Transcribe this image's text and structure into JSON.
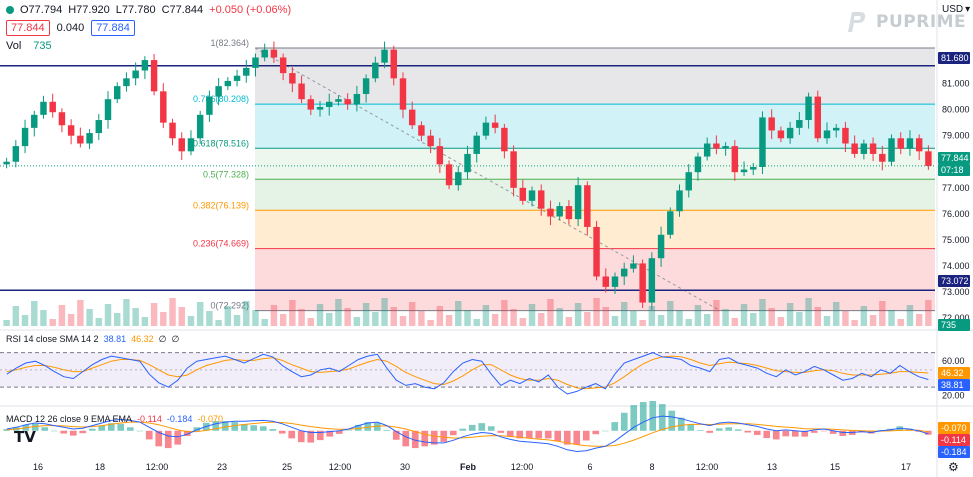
{
  "header": {
    "open_label": "O77.794",
    "high_label": "H77.920",
    "low_label": "L77.780",
    "close_label": "C77.844",
    "change_label": "+0.050 (+0.06%)"
  },
  "quote": {
    "bid": "77.844",
    "spread": "0.040",
    "ask": "77.884"
  },
  "volume": {
    "label": "Vol",
    "value": "735"
  },
  "brand": {
    "name": "PUPRIME"
  },
  "currency": {
    "label": "USD",
    "caret": "▾"
  },
  "rsi_legend": {
    "label": "RSI 14 close SMA 14 2",
    "rsi": "38.81",
    "sma": "46.32",
    "empty1": "∅",
    "empty2": "∅"
  },
  "macd_legend": {
    "label": "MACD 12 26 close 9 EMA EMA",
    "hist": "-0.114",
    "macd": "-0.184",
    "signal": "-0.070"
  },
  "colors": {
    "up": "#089981",
    "down": "#f23645",
    "rsi_line": "#2962ff",
    "rsi_sma": "#ff9800",
    "navy": "#1a237e"
  },
  "chart_data": {
    "type": "candlestick",
    "symbol_note": "Fibonacci retracement with RSI and MACD subpanes",
    "price_axis_ticks": [
      "82.000",
      "81.000",
      "80.000",
      "79.000",
      "78.000",
      "77.000",
      "76.000",
      "75.000",
      "74.000",
      "73.000",
      "72.000"
    ],
    "price_ylim": [
      71.7,
      82.9
    ],
    "x_tick_labels": [
      "16",
      "18",
      "12:00",
      "23",
      "25",
      "12:00",
      "30",
      "Feb",
      "12:00",
      "6",
      "8",
      "12:00",
      "13",
      "15",
      "17"
    ],
    "fib_levels": [
      {
        "ratio": "1",
        "price": 82.364,
        "label": "1(82.364)"
      },
      {
        "ratio": "0.786",
        "price": 80.208,
        "label": "0.786(80.208)"
      },
      {
        "ratio": "0.618",
        "price": 78.516,
        "label": "0.618(78.516)"
      },
      {
        "ratio": "0.5",
        "price": 77.328,
        "label": "0.5(77.328)"
      },
      {
        "ratio": "0.382",
        "price": 76.139,
        "label": "0.382(76.139)"
      },
      {
        "ratio": "0.236",
        "price": 74.669,
        "label": "0.236(74.669)"
      },
      {
        "ratio": "0",
        "price": 72.292,
        "label": "0(72.292)"
      }
    ],
    "horizontal_lines": [
      {
        "price": 81.68,
        "label": "81.680"
      },
      {
        "price": 73.072,
        "label": "73.072"
      }
    ],
    "last_price": {
      "price": 77.844,
      "label": "77.844",
      "countdown": "07:18"
    },
    "volume_tag": "735",
    "close_path": [
      78.0,
      78.6,
      79.3,
      79.8,
      80.3,
      79.9,
      79.4,
      79.0,
      78.7,
      79.1,
      79.6,
      80.4,
      80.9,
      81.2,
      81.5,
      81.9,
      80.7,
      79.5,
      78.9,
      78.4,
      78.9,
      79.8,
      80.5,
      80.9,
      81.1,
      81.3,
      81.6,
      82.0,
      82.3,
      82.0,
      81.4,
      81.0,
      80.4,
      80.0,
      80.1,
      80.3,
      80.4,
      80.2,
      80.6,
      81.2,
      81.8,
      82.3,
      81.2,
      80.0,
      79.4,
      79.0,
      78.6,
      77.9,
      77.1,
      77.6,
      78.3,
      79.0,
      79.5,
      79.3,
      78.4,
      77.0,
      76.5,
      76.9,
      76.2,
      75.9,
      76.3,
      75.8,
      77.1,
      75.5,
      73.6,
      73.2,
      73.6,
      73.9,
      74.1,
      72.6,
      74.3,
      75.2,
      76.1,
      76.9,
      77.6,
      78.2,
      78.7,
      78.5,
      78.6,
      77.6,
      77.7,
      77.8,
      79.7,
      79.2,
      78.9,
      79.3,
      79.6,
      80.5,
      78.9,
      79.2,
      79.3,
      78.7,
      78.3,
      78.7,
      78.3,
      78.0,
      78.9,
      78.5,
      78.9,
      78.4,
      77.84
    ],
    "rsi": {
      "ticks": [
        "60.00",
        "40.00",
        "20.00"
      ],
      "ylim": [
        15,
        80
      ],
      "upper_band": 70,
      "lower_band": 30,
      "current_rsi": 38.81,
      "current_sma": 46.32,
      "rsi_path": [
        45,
        52,
        58,
        60,
        55,
        48,
        42,
        40,
        48,
        56,
        62,
        66,
        64,
        62,
        60,
        45,
        35,
        30,
        38,
        52,
        60,
        62,
        64,
        66,
        62,
        58,
        63,
        68,
        65,
        55,
        48,
        42,
        44,
        50,
        52,
        48,
        55,
        62,
        66,
        68,
        52,
        38,
        32,
        34,
        30,
        28,
        35,
        48,
        58,
        62,
        60,
        45,
        32,
        38,
        34,
        40,
        36,
        44,
        30,
        22,
        25,
        30,
        34,
        28,
        45,
        58,
        62,
        66,
        70,
        65,
        64,
        62,
        55,
        52,
        48,
        62,
        64,
        58,
        55,
        52,
        46,
        42,
        50,
        44,
        48,
        54,
        50,
        44,
        38,
        40,
        46,
        42,
        50,
        46,
        55,
        48,
        42,
        38.81
      ],
      "sma_path": [
        48,
        50,
        53,
        55,
        55,
        53,
        50,
        48,
        48,
        52,
        56,
        60,
        62,
        62,
        61,
        56,
        50,
        44,
        42,
        44,
        50,
        55,
        58,
        61,
        62,
        61,
        61,
        63,
        64,
        61,
        56,
        52,
        48,
        47,
        48,
        49,
        51,
        55,
        59,
        62,
        60,
        54,
        47,
        42,
        38,
        34,
        33,
        37,
        43,
        50,
        56,
        56,
        50,
        44,
        40,
        38,
        38,
        40,
        38,
        33,
        29,
        28,
        29,
        30,
        35,
        42,
        50,
        57,
        62,
        65,
        66,
        65,
        62,
        58,
        55,
        57,
        59,
        58,
        57,
        55,
        52,
        49,
        48,
        47,
        47,
        49,
        50,
        49,
        46,
        44,
        44,
        44,
        45,
        46,
        48,
        48,
        47,
        46.32
      ]
    },
    "macd": {
      "current_hist": -0.114,
      "current_macd": -0.184,
      "current_signal": -0.07,
      "ylim": [
        -1.4,
        1.2
      ],
      "macd_path": [
        0.1,
        0.2,
        0.35,
        0.45,
        0.4,
        0.3,
        0.2,
        0.1,
        0.15,
        0.3,
        0.45,
        0.6,
        0.65,
        0.6,
        0.5,
        0.2,
        -0.1,
        -0.3,
        -0.35,
        -0.2,
        0.05,
        0.25,
        0.4,
        0.5,
        0.55,
        0.55,
        0.58,
        0.6,
        0.55,
        0.4,
        0.2,
        0.0,
        -0.1,
        -0.1,
        -0.05,
        0.0,
        0.1,
        0.3,
        0.45,
        0.5,
        0.3,
        -0.05,
        -0.35,
        -0.55,
        -0.65,
        -0.7,
        -0.7,
        -0.55,
        -0.35,
        -0.2,
        -0.1,
        -0.15,
        -0.35,
        -0.5,
        -0.6,
        -0.65,
        -0.7,
        -0.75,
        -0.9,
        -1.1,
        -1.2,
        -1.15,
        -1.0,
        -0.9,
        -0.6,
        -0.2,
        0.2,
        0.5,
        0.75,
        0.85,
        0.8,
        0.7,
        0.55,
        0.4,
        0.3,
        0.45,
        0.5,
        0.45,
        0.35,
        0.25,
        0.1,
        0.0,
        0.05,
        0.0,
        -0.05,
        0.05,
        0.1,
        0.0,
        -0.1,
        -0.1,
        -0.05,
        -0.1,
        0.0,
        0.05,
        0.15,
        0.1,
        0.0,
        -0.184
      ],
      "signal_path": [
        0.05,
        0.1,
        0.18,
        0.25,
        0.3,
        0.3,
        0.28,
        0.24,
        0.22,
        0.24,
        0.3,
        0.38,
        0.45,
        0.5,
        0.5,
        0.45,
        0.35,
        0.2,
        0.05,
        -0.05,
        -0.05,
        0.02,
        0.12,
        0.22,
        0.3,
        0.36,
        0.42,
        0.47,
        0.5,
        0.48,
        0.42,
        0.33,
        0.24,
        0.17,
        0.12,
        0.09,
        0.09,
        0.13,
        0.2,
        0.27,
        0.28,
        0.21,
        0.1,
        -0.05,
        -0.2,
        -0.3,
        -0.38,
        -0.42,
        -0.41,
        -0.37,
        -0.32,
        -0.28,
        -0.29,
        -0.33,
        -0.38,
        -0.43,
        -0.48,
        -0.53,
        -0.6,
        -0.7,
        -0.8,
        -0.87,
        -0.9,
        -0.9,
        -0.85,
        -0.72,
        -0.54,
        -0.33,
        -0.11,
        0.08,
        0.22,
        0.32,
        0.37,
        0.38,
        0.36,
        0.38,
        0.4,
        0.41,
        0.4,
        0.37,
        0.31,
        0.25,
        0.21,
        0.17,
        0.12,
        0.11,
        0.11,
        0.09,
        0.05,
        0.02,
        0.0,
        -0.02,
        -0.02,
        -0.01,
        0.02,
        0.04,
        0.03,
        -0.07
      ]
    }
  }
}
